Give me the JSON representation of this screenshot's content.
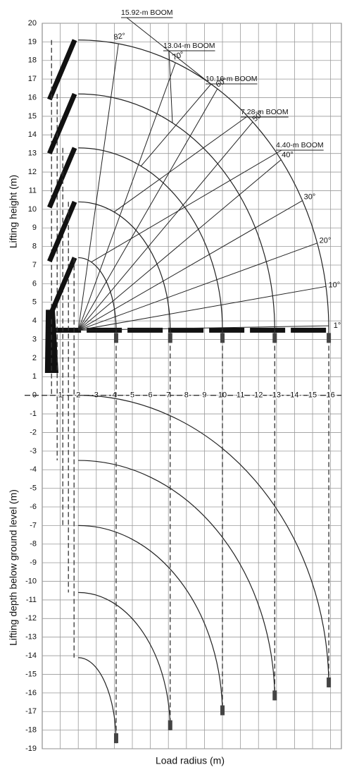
{
  "chart_data": {
    "type": "crane-range",
    "x_label": "Load radius (m)",
    "y_label": "Lifting height (m)",
    "y_label_below": "Lifting depth below ground level (m)",
    "xlim": [
      0,
      16.6
    ],
    "ylim": [
      -19,
      20
    ],
    "xticks": [
      1,
      2,
      3,
      4,
      5,
      6,
      7,
      8,
      9,
      10,
      11,
      12,
      13,
      14,
      15,
      16
    ],
    "yticks": [
      -19,
      -18,
      -17,
      -16,
      -15,
      -14,
      -13,
      -12,
      -11,
      -10,
      -9,
      -8,
      -7,
      -6,
      -5,
      -4,
      -3,
      -2,
      -1,
      0,
      1,
      2,
      3,
      4,
      5,
      6,
      7,
      8,
      9,
      10,
      11,
      12,
      13,
      14,
      15,
      16,
      17,
      18,
      19,
      20
    ],
    "grid": true,
    "min_radius": 2,
    "base_height": 3.5,
    "angles": [
      {
        "value": 82,
        "label": "82°"
      },
      {
        "value": 70,
        "label": "70°"
      },
      {
        "value": 60,
        "label": "60°"
      },
      {
        "value": 50,
        "label": "50°"
      },
      {
        "value": 40,
        "label": "40°"
      },
      {
        "value": 30,
        "label": "30°"
      },
      {
        "value": 20,
        "label": "20°"
      },
      {
        "value": 10,
        "label": "10°"
      },
      {
        "value": 1,
        "label": "1°"
      }
    ],
    "series": [
      {
        "name": "15.92-m BOOM",
        "tip_height": 19.1,
        "max_radius": 15.9,
        "depth_at_min_radius": 0,
        "depth_at_max_radius": -15.7
      },
      {
        "name": "13.04-m BOOM",
        "tip_height": 16.2,
        "max_radius": 12.9,
        "depth_at_min_radius": -3.5,
        "depth_at_max_radius": -16.4
      },
      {
        "name": "10.16-m BOOM",
        "tip_height": 13.3,
        "max_radius": 10,
        "depth_at_min_radius": -7,
        "depth_at_max_radius": -17.2
      },
      {
        "name": "7.28-m BOOM",
        "tip_height": 10.4,
        "max_radius": 7.1,
        "depth_at_min_radius": -10.6,
        "depth_at_max_radius": -18
      },
      {
        "name": "4.40-m BOOM",
        "tip_height": 7.4,
        "max_radius": 4.1,
        "depth_at_min_radius": -14.1,
        "depth_at_max_radius": -18.7
      }
    ]
  }
}
